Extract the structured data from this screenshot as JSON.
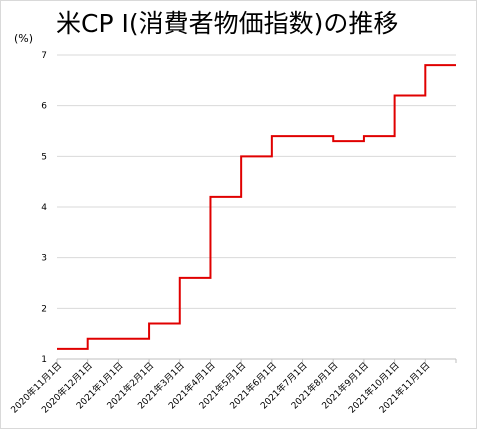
{
  "chart_data": {
    "type": "line",
    "title": "米CP I(消費者物価指数)の推移",
    "ylabel": "(%)",
    "xlabel": "",
    "ylim": [
      1,
      7
    ],
    "yticks": [
      1,
      2,
      3,
      4,
      5,
      6,
      7
    ],
    "grid": true,
    "line_style": "step",
    "color": "#e00000",
    "x_tick_labels": [
      "2020年11月1日",
      "2020年12月1日",
      "2021年1月1日",
      "2021年2月1日",
      "2021年3月1日",
      "2021年4月1日",
      "2021年5月1日",
      "2021年6月1日",
      "2021年7月1日",
      "2021年8月1日",
      "2021年9月1日",
      "2021年10月1日",
      "2021年11月1日"
    ],
    "series": [
      {
        "x": [
          "2020年11月1日",
          "2020年12月1日",
          "2021年1月1日",
          "2021年2月1日",
          "2021年3月1日",
          "2021年4月1日",
          "2021年5月1日",
          "2021年6月1日",
          "2021年7月1日",
          "2021年8月1日",
          "2021年9月1日",
          "2021年10月1日",
          "2021年11月1日"
        ],
        "values": [
          1.2,
          1.4,
          1.4,
          1.7,
          2.6,
          4.2,
          5.0,
          5.4,
          5.4,
          5.3,
          5.4,
          6.2,
          6.8
        ]
      }
    ]
  }
}
